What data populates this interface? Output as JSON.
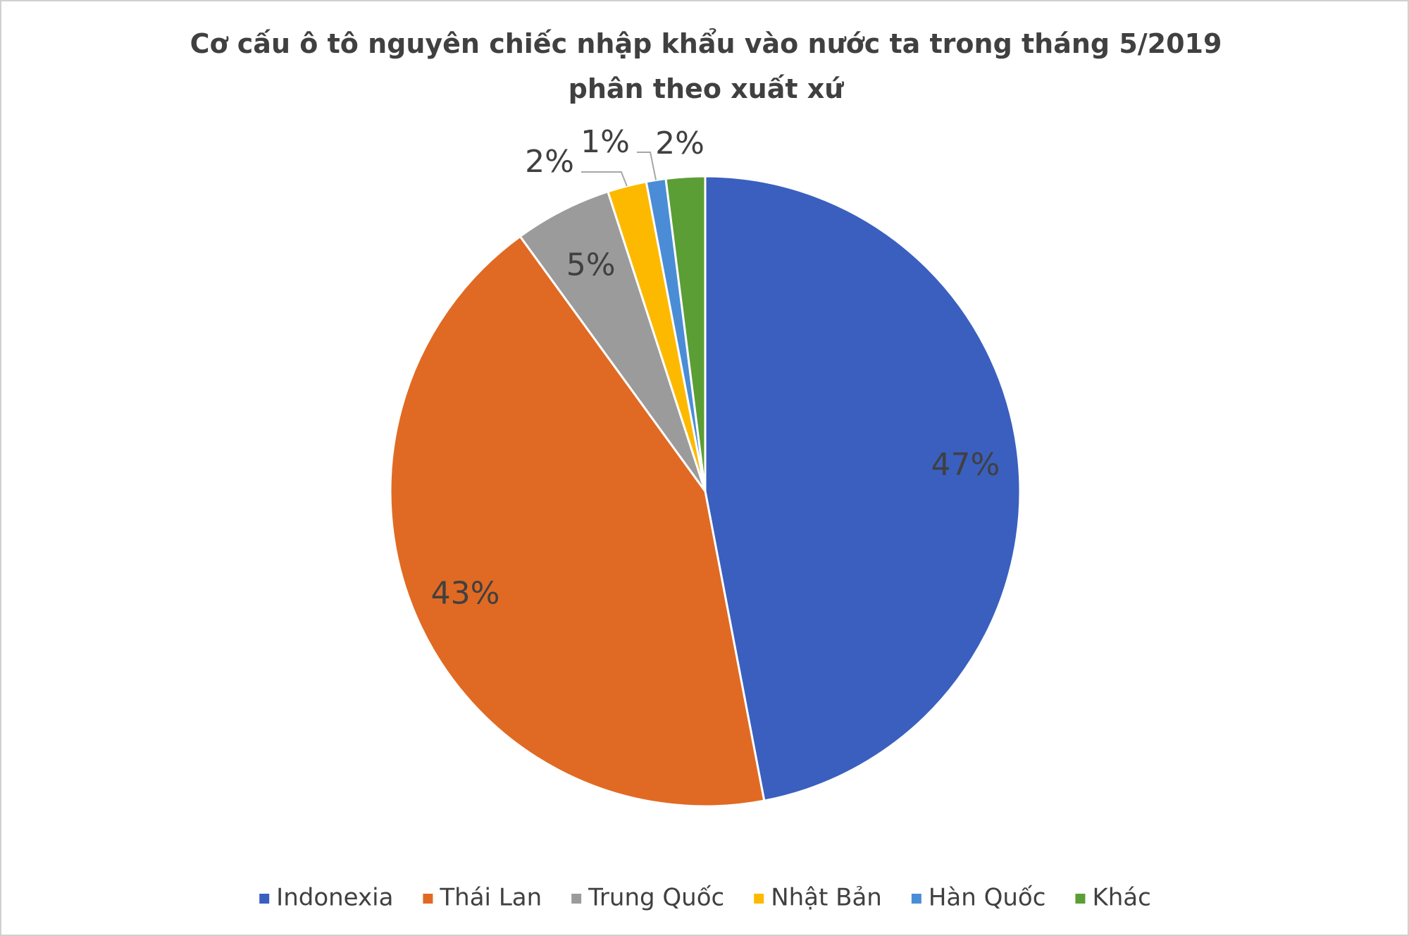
{
  "chart_data": {
    "type": "pie",
    "title": "Cơ cấu ô tô nguyên chiếc nhập khẩu vào nước ta trong tháng 5/2019 phân theo xuất xứ",
    "categories": [
      "Indonexia",
      "Thái Lan",
      "Trung Quốc",
      "Nhật Bản",
      "Hàn Quốc",
      "Khác"
    ],
    "values": [
      47,
      43,
      5,
      2,
      1,
      2
    ],
    "value_labels": [
      "47%",
      "43%",
      "5%",
      "2%",
      "1%",
      "2%"
    ],
    "colors": [
      "#3a5fbf",
      "#e06a23",
      "#9b9b9b",
      "#fdb900",
      "#4a8dd6",
      "#5b9e35"
    ],
    "legend": "bottom"
  }
}
